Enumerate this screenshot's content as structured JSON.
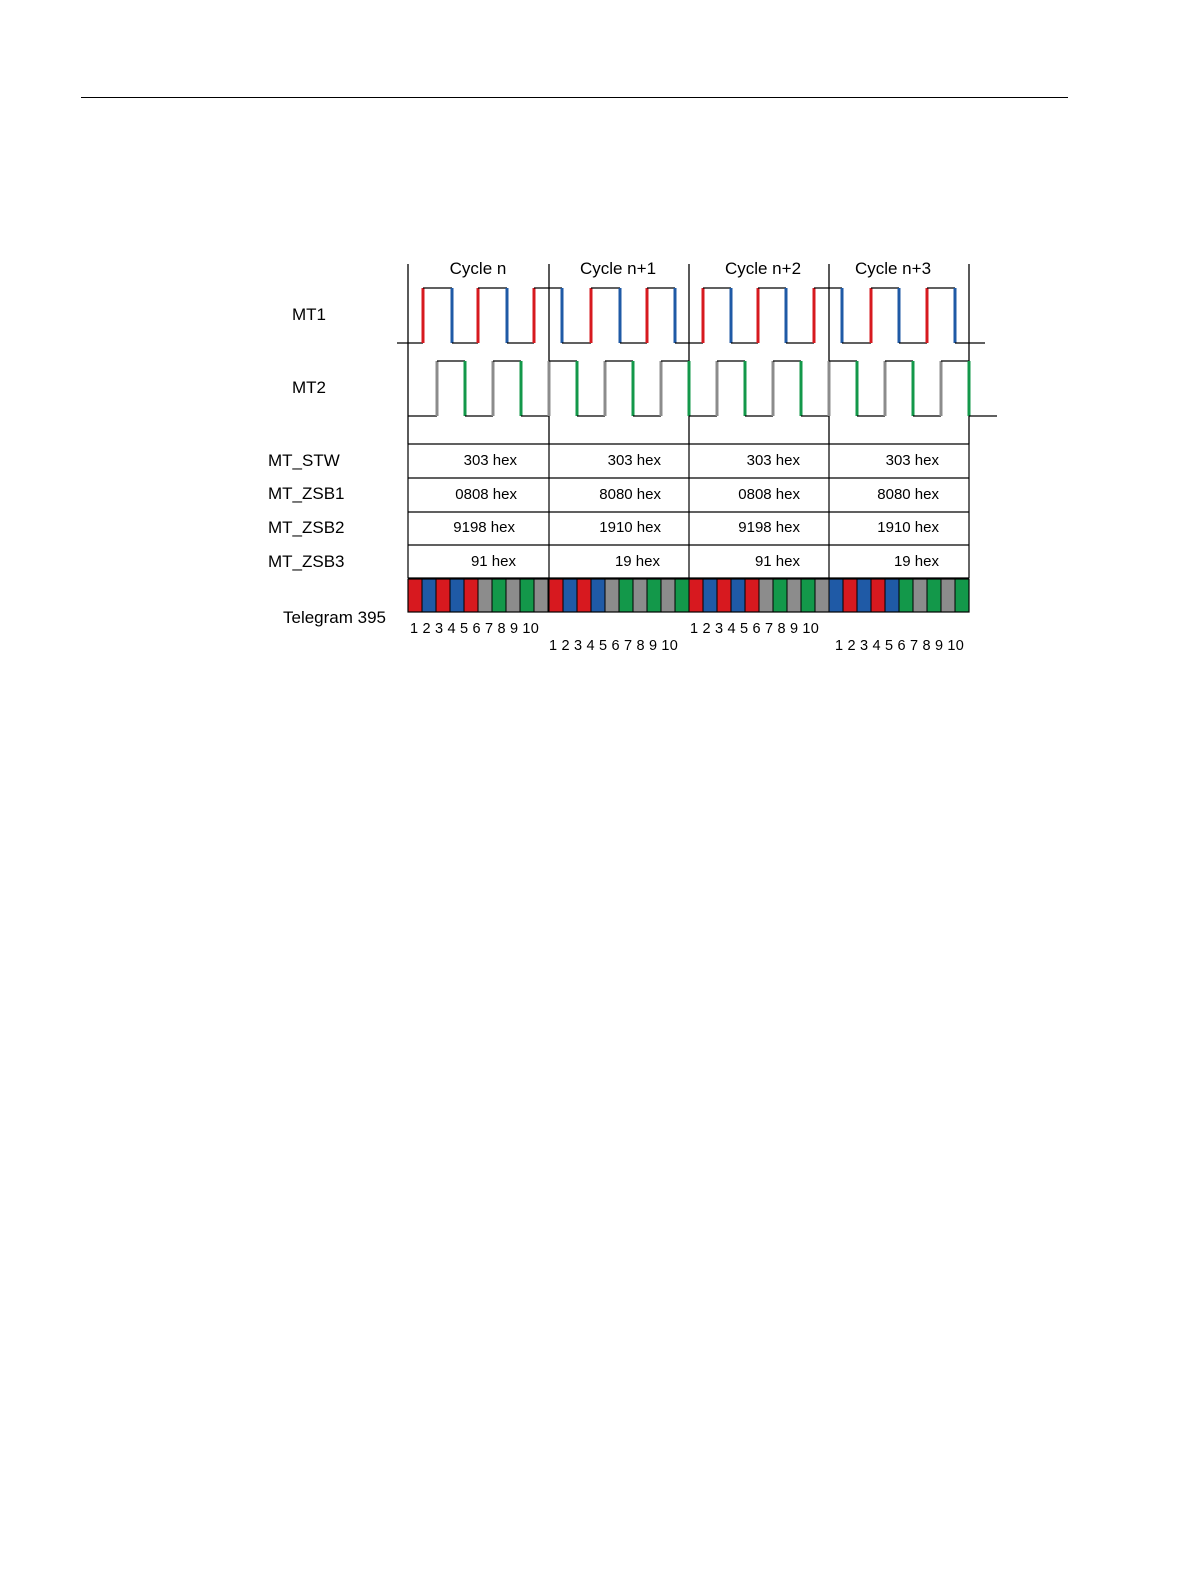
{
  "cycles": [
    "Cycle n",
    "Cycle n+1",
    "Cycle n+2",
    "Cycle n+3"
  ],
  "signals": {
    "mt1": "MT1",
    "mt2": "MT2"
  },
  "table": {
    "rows": [
      {
        "label": "MT_STW",
        "values": [
          "303 hex",
          "303 hex",
          "303 hex",
          "303 hex"
        ]
      },
      {
        "label": "MT_ZSB1",
        "values": [
          "0808 hex",
          "8080 hex",
          "0808 hex",
          "8080 hex"
        ]
      },
      {
        "label": "MT_ZSB2",
        "values": [
          "9198 hex",
          "1910 hex",
          "9198 hex",
          "1910 hex"
        ]
      },
      {
        "label": "MT_ZSB3",
        "values": [
          "91 hex",
          "19 hex",
          "91 hex",
          "19 hex"
        ]
      }
    ]
  },
  "telegram": {
    "label": "Telegram 395",
    "bit_numbers": "1 2 3 4 5 6 7 8 9 10",
    "slot_colors": [
      [
        "red",
        "blue",
        "red",
        "blue",
        "red",
        "gray",
        "green",
        "gray",
        "green",
        "gray"
      ],
      [
        "red",
        "blue",
        "red",
        "blue",
        "gray",
        "green",
        "gray",
        "green",
        "gray",
        "green"
      ],
      [
        "red",
        "blue",
        "red",
        "blue",
        "red",
        "gray",
        "green",
        "gray",
        "green",
        "gray"
      ],
      [
        "blue",
        "red",
        "blue",
        "red",
        "blue",
        "green",
        "gray",
        "green",
        "gray",
        "green"
      ]
    ]
  },
  "colors": {
    "red": "#d7191f",
    "blue": "#1f5aa6",
    "green": "#13984a",
    "gray": "#8c8c8c",
    "line": "#000000"
  }
}
